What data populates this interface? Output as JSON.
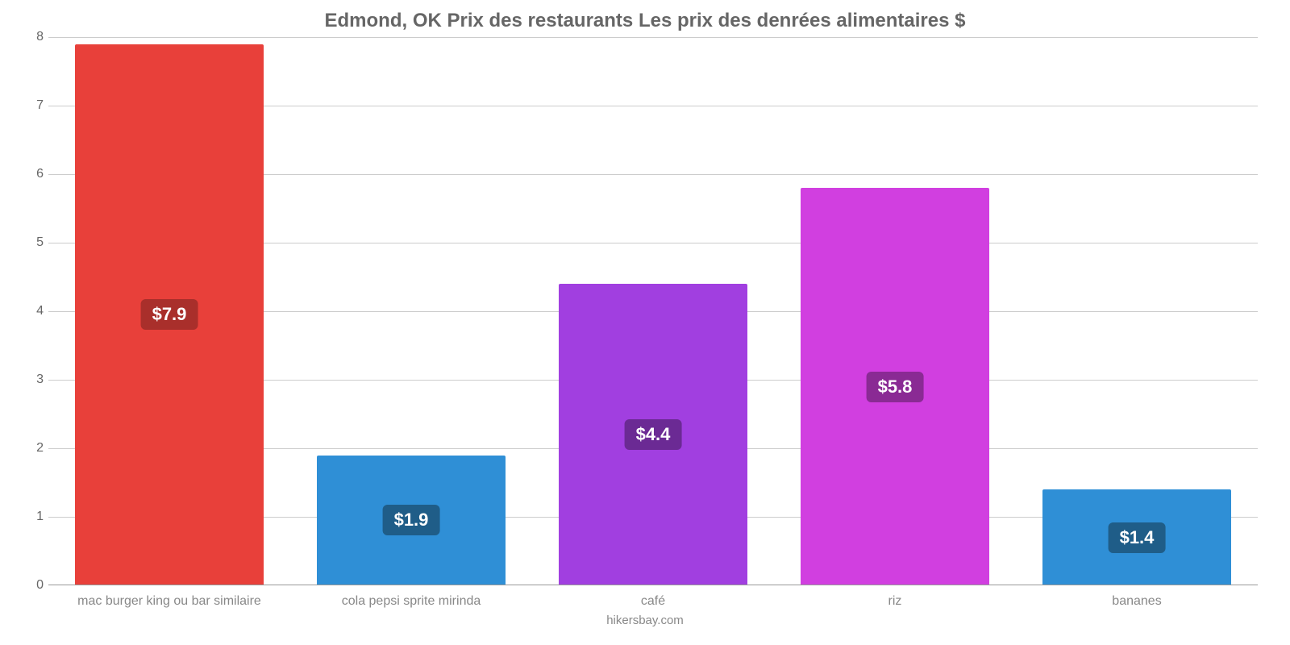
{
  "chart": {
    "type": "bar",
    "title": "Edmond, OK Prix des restaurants Les prix des denrées alimentaires $",
    "title_fontsize": 24,
    "title_color": "#666666",
    "source": "hikersbay.com",
    "source_fontsize": 15,
    "source_color": "#888888",
    "background_color": "#ffffff",
    "grid_color": "#cccccc",
    "axis_label_color": "#666666",
    "xaxis_label_color": "#888888",
    "label_fontsize": 16,
    "bar_width_pct": 78,
    "ylim": [
      0,
      8
    ],
    "ytick_step": 1,
    "yticks": [
      0,
      1,
      2,
      3,
      4,
      5,
      6,
      7,
      8
    ],
    "bar_label_fontsize": 22,
    "bar_label_text_color": "#ffffff",
    "categories": [
      "mac burger king ou bar similaire",
      "cola pepsi sprite mirinda",
      "café",
      "riz",
      "bananes"
    ],
    "values": [
      7.9,
      1.9,
      4.4,
      5.8,
      1.4
    ],
    "display_values": [
      "$7.9",
      "$1.9",
      "$4.4",
      "$5.8",
      "$1.4"
    ],
    "bar_colors": [
      "#e8403a",
      "#2f8fd6",
      "#a13fe0",
      "#d13fe0",
      "#2f8fd6"
    ],
    "bar_label_bg": [
      "#a92f2b",
      "#1f5d88",
      "#6b2a94",
      "#8a2a94",
      "#1f5d88"
    ]
  }
}
